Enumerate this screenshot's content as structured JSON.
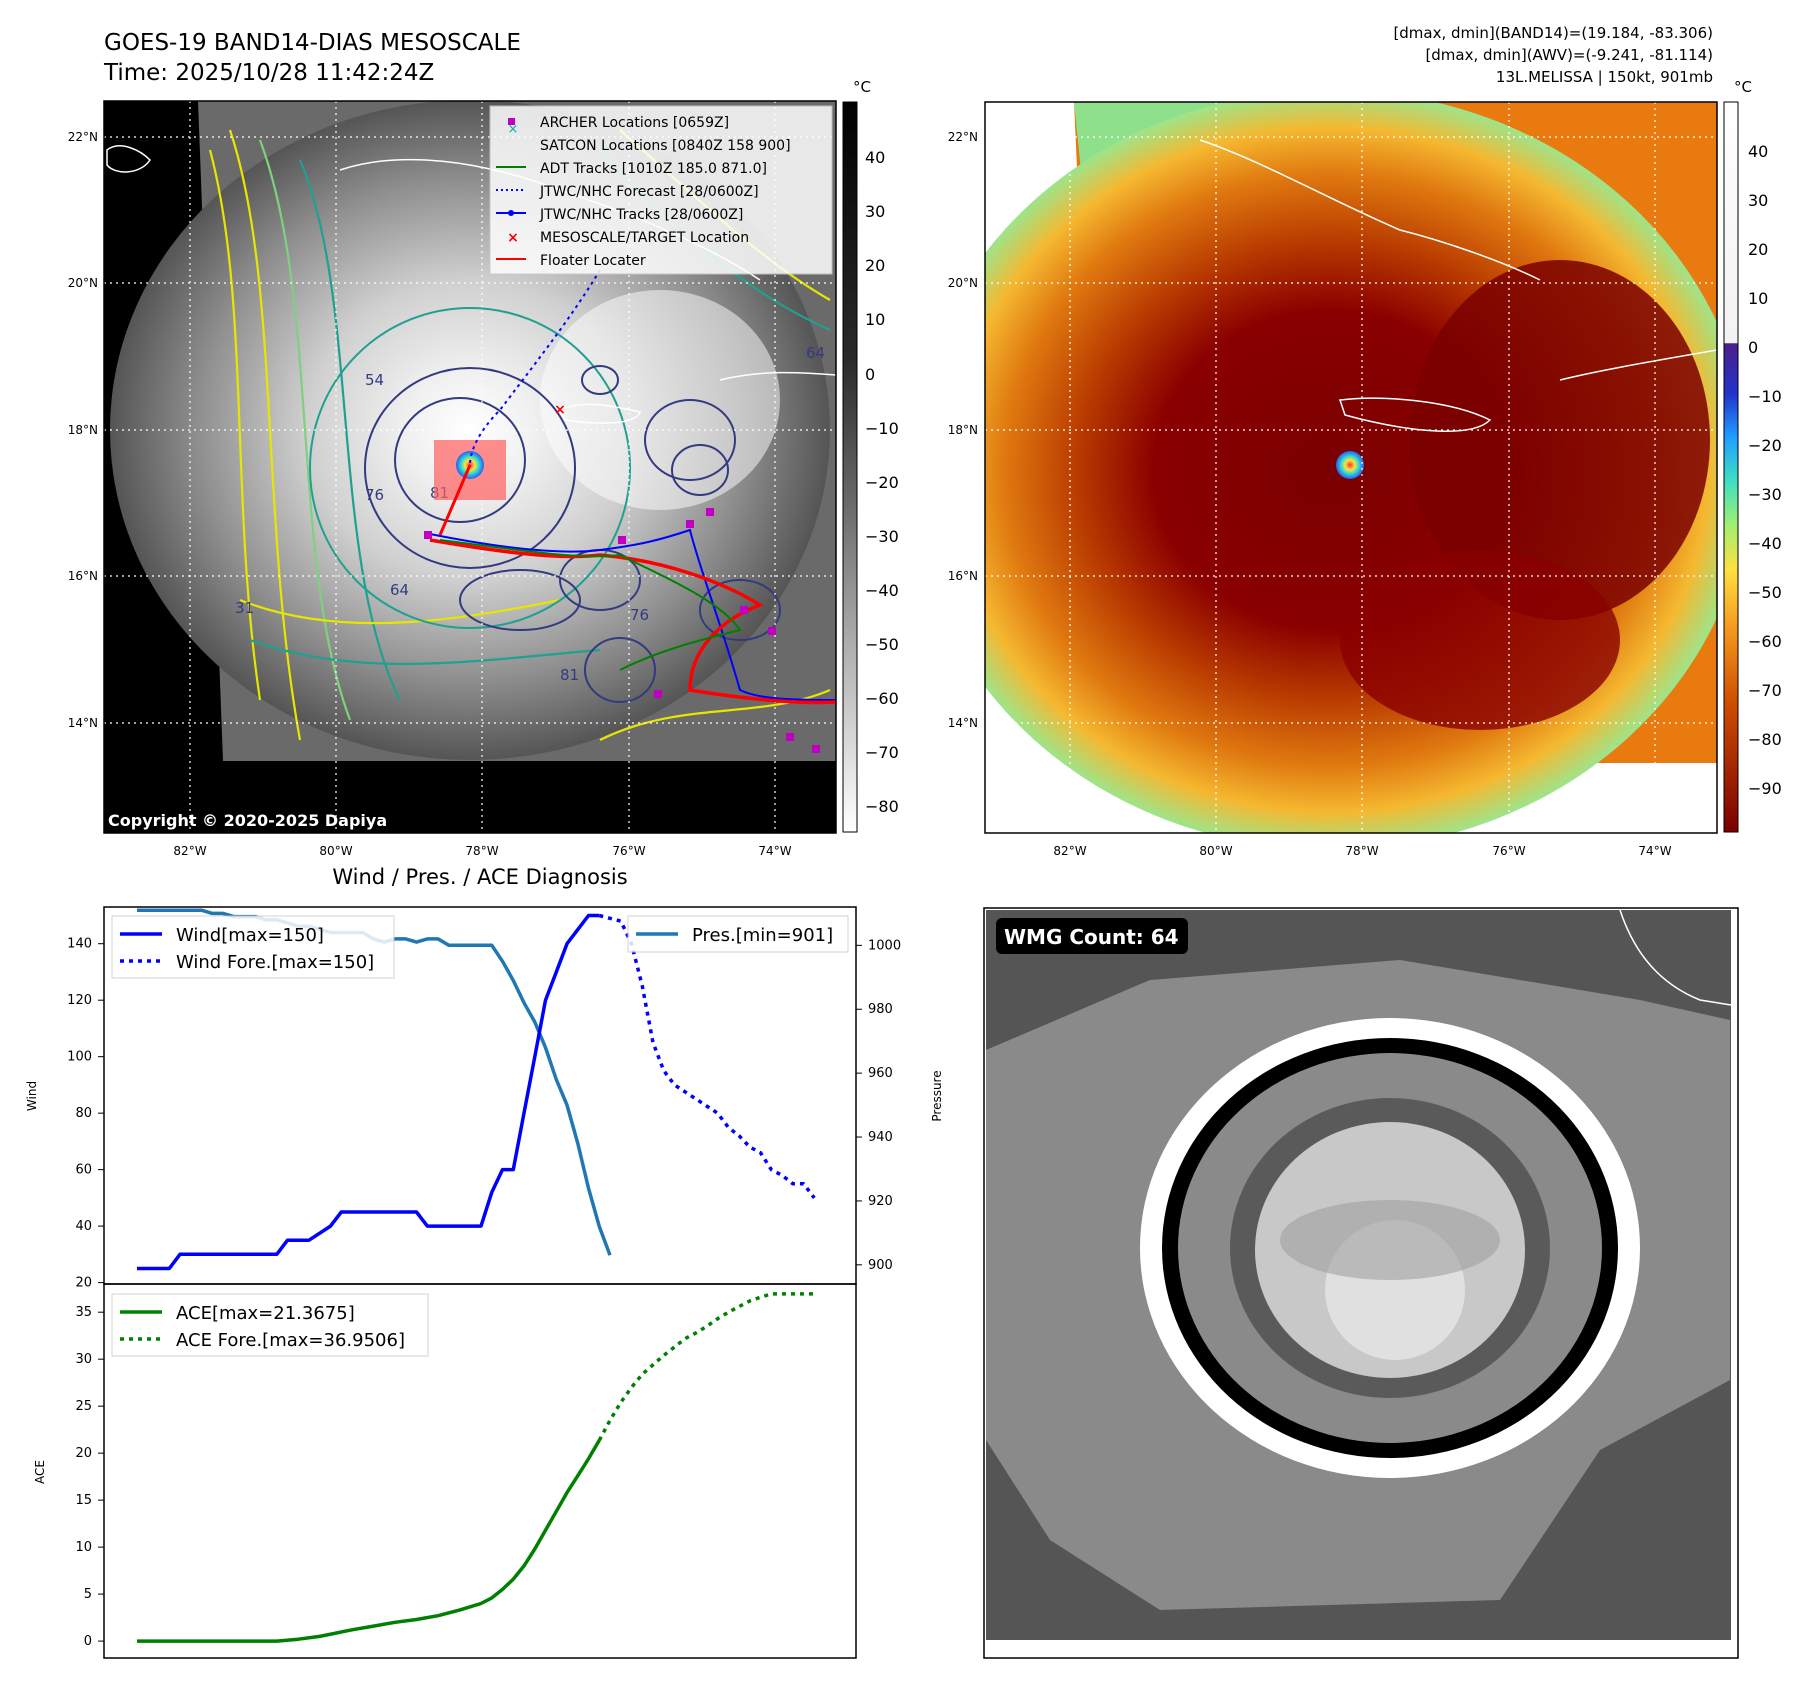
{
  "header": {
    "title_line1": "GOES-19 BAND14-DIAS MESOSCALE",
    "title_line2": "Time: 2025/10/28 11:42:24Z",
    "info_line1": "[dmax, dmin](BAND14)=(19.184, -83.306)",
    "info_line2": "[dmax, dmin](AWV)=(-9.241, -81.114)",
    "info_line3": "13L.MELISSA | 150kt, 901mb"
  },
  "map_panels": {
    "unit": "°C",
    "lat_ticks": [
      "22°N",
      "20°N",
      "18°N",
      "16°N",
      "14°N"
    ],
    "lon_ticks": [
      "82°W",
      "80°W",
      "78°W",
      "76°W",
      "74°W"
    ],
    "copyright": "Copyright © 2020-2025 Dapiya",
    "left_colorbar_ticks": [
      "40",
      "30",
      "20",
      "10",
      "0",
      "−10",
      "−20",
      "−30",
      "−40",
      "−50",
      "−60",
      "−70",
      "−80"
    ],
    "right_colorbar_ticks": [
      "40",
      "30",
      "20",
      "10",
      "0",
      "−10",
      "−20",
      "−30",
      "−40",
      "−50",
      "−60",
      "−70",
      "−80",
      "−90"
    ],
    "contour_labels": [
      "54",
      "76",
      "81",
      "64",
      "31",
      "64",
      "76",
      "81"
    ],
    "legend": [
      {
        "label": "ARCHER Locations [0659Z]",
        "color": "#c000c0"
      },
      {
        "label": "SATCON Locations [0840Z 158 900]",
        "color": "#00b0b0"
      },
      {
        "label": "ADT Tracks [1010Z 185.0 871.0]",
        "color": "#008000"
      },
      {
        "label": "JTWC/NHC Forecast [28/0600Z]",
        "color": "#0000ff"
      },
      {
        "label": "JTWC/NHC Tracks [28/0600Z]",
        "color": "#0000ff"
      },
      {
        "label": "MESOSCALE/TARGET Location",
        "color": "#ff0000"
      },
      {
        "label": "Floater Locater",
        "color": "#ff0000"
      }
    ],
    "wmg_count_label": "WMG Count: 64"
  },
  "chart_data": [
    {
      "type": "line",
      "title": "Wind / Pres. / ACE Diagnosis",
      "ylabel": "Wind",
      "y2label": "Pressure",
      "ylim": [
        19.5,
        153
      ],
      "y2lim": [
        894,
        1012
      ],
      "yticks": [
        20,
        40,
        60,
        80,
        100,
        120,
        140
      ],
      "y2ticks": [
        900,
        920,
        940,
        960,
        980,
        1000
      ],
      "x_range": [
        0,
        64
      ],
      "series": [
        {
          "name": "Wind[max=150]",
          "style": "solid",
          "color": "#0000ff",
          "x": [
            0,
            3,
            4,
            8,
            9,
            13,
            14,
            15,
            16,
            18,
            19,
            20,
            21,
            22,
            23,
            24,
            25,
            26,
            27,
            28,
            29,
            30,
            31,
            32,
            33,
            34,
            35,
            36,
            37,
            38,
            39,
            40,
            41,
            42,
            43
          ],
          "values": [
            25,
            25,
            30,
            30,
            30,
            30,
            35,
            35,
            35,
            40,
            45,
            45,
            45,
            45,
            45,
            45,
            45,
            45,
            40,
            40,
            40,
            40,
            40,
            40,
            52,
            60,
            60,
            80,
            100,
            120,
            130,
            140,
            145,
            150,
            150
          ]
        },
        {
          "name": "Wind Fore.[max=150]",
          "style": "dotted",
          "color": "#0000ff",
          "x": [
            43,
            45,
            46,
            47,
            48,
            49,
            50,
            52,
            54,
            55,
            56,
            57,
            58,
            59,
            60,
            61,
            62,
            63
          ],
          "values": [
            150,
            148,
            140,
            125,
            105,
            95,
            90,
            85,
            80,
            75,
            72,
            68,
            66,
            60,
            58,
            55,
            55,
            50
          ]
        },
        {
          "name": "Pres.[min=901]",
          "style": "solid",
          "color": "#1f77b4",
          "axis": "right",
          "x": [
            0,
            2,
            3,
            4,
            5,
            6,
            7,
            8,
            9,
            10,
            11,
            12,
            13,
            14,
            15,
            16,
            17,
            18,
            19,
            20,
            21,
            22,
            23,
            24,
            25,
            26,
            27,
            28,
            29,
            30,
            31,
            32,
            33,
            34,
            35,
            36,
            37,
            38,
            39,
            40,
            41,
            42,
            43,
            44
          ],
          "values": [
            1011,
            1011,
            1011,
            1011,
            1011,
            1011,
            1010,
            1010,
            1009,
            1009,
            1009,
            1008,
            1008,
            1007,
            1006,
            1006,
            1005,
            1004,
            1004,
            1004,
            1004,
            1002,
            1001,
            1002,
            1002,
            1001,
            1002,
            1002,
            1000,
            1000,
            1000,
            1000,
            1000,
            995,
            989,
            982,
            976,
            968,
            958,
            950,
            938,
            924,
            912,
            903
          ]
        }
      ]
    },
    {
      "type": "line",
      "ylabel": "ACE",
      "ylim": [
        -1.8,
        38
      ],
      "yticks": [
        0,
        5,
        10,
        15,
        20,
        25,
        30,
        35
      ],
      "x_range": [
        0,
        64
      ],
      "series": [
        {
          "name": "ACE[max=21.3675]",
          "style": "solid",
          "color": "#008000",
          "x": [
            0,
            13,
            15,
            17,
            20,
            22,
            24,
            26,
            28,
            30,
            32,
            33,
            34,
            35,
            36,
            37,
            38,
            39,
            40,
            41,
            42,
            43
          ],
          "values": [
            0,
            0,
            0.2,
            0.5,
            1.2,
            1.6,
            2.0,
            2.3,
            2.7,
            3.3,
            4.0,
            4.6,
            5.5,
            6.6,
            8.0,
            9.8,
            11.8,
            13.8,
            15.8,
            17.6,
            19.4,
            21.3675
          ]
        },
        {
          "name": "ACE Fore.[max=36.9506]",
          "style": "dotted",
          "color": "#008000",
          "x": [
            43,
            44,
            45,
            46,
            47,
            48,
            49,
            50,
            51,
            52,
            53,
            54,
            55,
            56,
            57,
            58,
            59,
            60,
            61,
            62,
            63
          ],
          "values": [
            21.3675,
            23.5,
            25.4,
            27.0,
            28.4,
            29.4,
            30.4,
            31.3,
            32.2,
            32.8,
            33.5,
            34.3,
            35.0,
            35.6,
            36.2,
            36.6,
            36.95,
            36.95,
            36.95,
            36.95,
            36.9506
          ]
        }
      ]
    }
  ]
}
